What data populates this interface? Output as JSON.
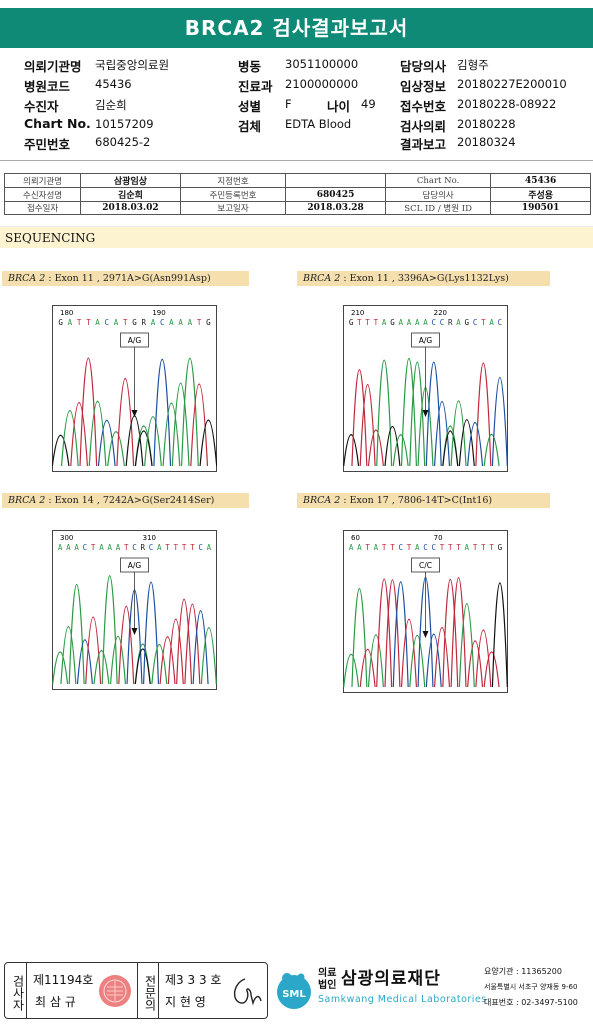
{
  "title": "BRCA2 검사결과보고서",
  "header": {
    "col1": [
      {
        "label": "의뢰기관명",
        "value": "국립중앙의료원"
      },
      {
        "label": "병원코드",
        "value": "45436"
      },
      {
        "label": "수진자",
        "value": "김순희"
      },
      {
        "label": "Chart No.",
        "value": "10157209"
      },
      {
        "label": "주민번호",
        "value": "680425-2"
      }
    ],
    "col2": [
      {
        "label": "병동",
        "value": "3051100000"
      },
      {
        "label": "진료과",
        "value": "2100000000"
      },
      {
        "label": "성별",
        "value": "F"
      },
      {
        "label": "검체",
        "value": "EDTA Blood"
      }
    ],
    "age": {
      "label": "나이",
      "value": "49"
    },
    "col3": [
      {
        "label": "담당의사",
        "value": "김형주"
      },
      {
        "label": "임상정보",
        "value": "20180227E200010"
      },
      {
        "label": "접수번호",
        "value": "20180228-08922"
      },
      {
        "label": "검사의뢰",
        "value": "20180228"
      },
      {
        "label": "결과보고",
        "value": "20180324"
      }
    ]
  },
  "patient_table": {
    "rows": [
      [
        "의뢰기관명",
        "삼광임상",
        "지정번호",
        "",
        "Chart No.",
        "45436"
      ],
      [
        "수신자성명",
        "김순희",
        "주민등록번호",
        "680425",
        "담당의사",
        "주성용"
      ],
      [
        "접수일자",
        "2018.03.02",
        "보고일자",
        "2018.03.28",
        "SCL ID / 병원 ID",
        "190501"
      ]
    ]
  },
  "section": "SEQUENCING",
  "panels": [
    {
      "gene": "BRCA 2",
      "variant": " : Exon 11 , 2971A>G(Asn991Asp)",
      "seq": "GATTACATGRACAAATG",
      "pos_left": "180",
      "pos_right": "190",
      "call": "A/G"
    },
    {
      "gene": "BRCA 2",
      "variant": " : Exon 11 , 3396A>G(Lys1132Lys)",
      "seq": "GTTTAGAAAACCRAGCTAC",
      "pos_left": "210",
      "pos_right": "220",
      "call": "A/G"
    },
    {
      "gene": "BRCA 2",
      "variant": " : Exon 14 , 7242A>G(Ser2414Ser)",
      "seq": "AAACTAAATCRCATTTTCA",
      "pos_left": "300",
      "pos_right": "310",
      "call": "A/G"
    },
    {
      "gene": "BRCA 2",
      "variant": " : Exon 17 , 7806-14T>C(Int16)",
      "seq": "AATATTCTACCTTTATTTG",
      "pos_left": "60",
      "pos_right": "70",
      "call": "C/C"
    }
  ],
  "footer": {
    "reviewer_label": "검사자",
    "reviewer_no": "제11194호",
    "reviewer_name": "최 삼 규",
    "confirmer_label": "전문의",
    "confirmer_no": "제3 3 3 호",
    "confirmer_name": "지 현 영",
    "sml": "SML",
    "org_small_1": "의료",
    "org_small_2": "법인",
    "org_name": "삼광의료재단",
    "org_en": "Samkwang Medical Laboratories",
    "inst_code": "요양기관 : 11365200",
    "address": "서울특별시 서초구 양재동 9-60",
    "phone": "대표번호 : 02-3497-5100"
  },
  "colors": {
    "brand": "#0e8a76",
    "trace_A": "#2a9a45",
    "trace_C": "#1c4fa0",
    "trace_G": "#111111",
    "trace_T": "#c0283c"
  }
}
